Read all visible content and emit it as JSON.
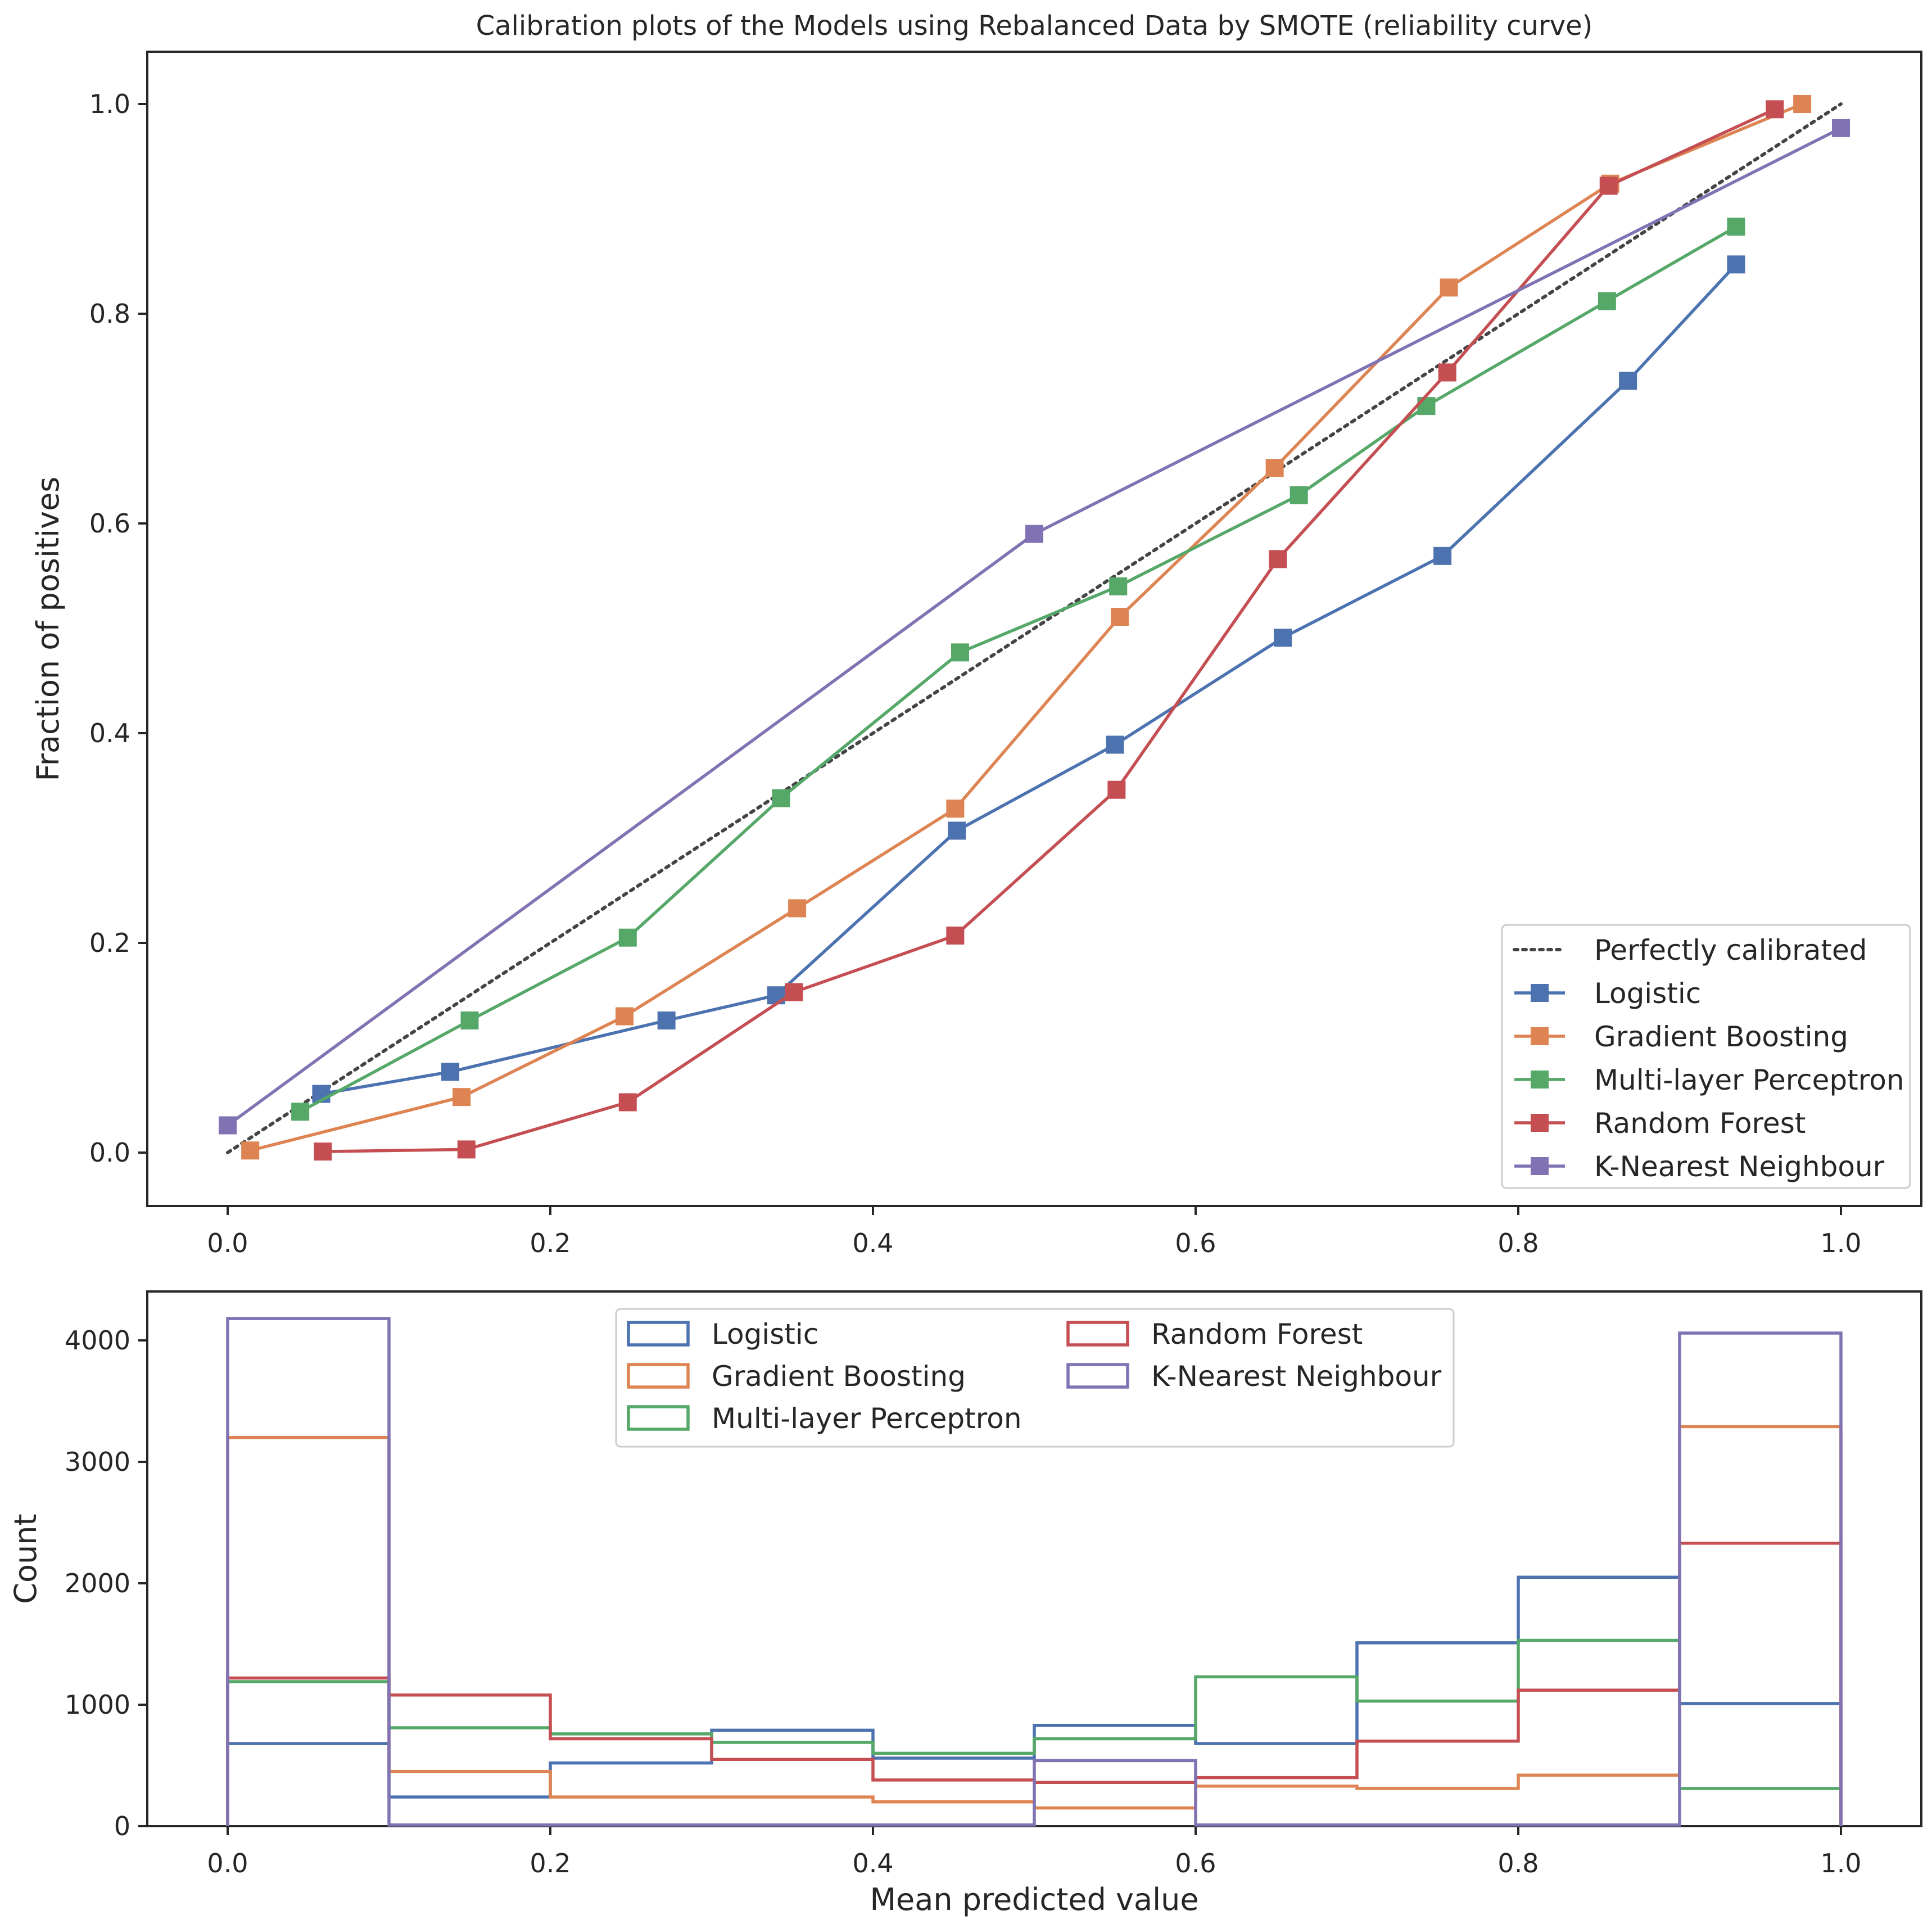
{
  "chart_data": [
    {
      "type": "line",
      "title": "Calibration plots of the Models using Rebalanced Data by SMOTE (reliability curve)",
      "xlabel": "",
      "ylabel": "Fraction of positives",
      "xlim": [
        -0.05,
        1.05
      ],
      "ylim": [
        -0.05,
        1.05
      ],
      "xticks": [
        0.0,
        0.2,
        0.4,
        0.6,
        0.8,
        1.0
      ],
      "xtick_labels": [
        "0.0",
        "0.2",
        "0.4",
        "0.6",
        "0.8",
        "1.0"
      ],
      "yticks": [
        0.0,
        0.2,
        0.4,
        0.6,
        0.8,
        1.0
      ],
      "ytick_labels": [
        "0.0",
        "0.2",
        "0.4",
        "0.6",
        "0.8",
        "1.0"
      ],
      "grid": false,
      "legend_position": "lower-right",
      "reference": {
        "name": "Perfectly calibrated",
        "x": [
          0,
          1
        ],
        "y": [
          0,
          1
        ],
        "color": "#444444",
        "style": "dotted"
      },
      "series": [
        {
          "name": "Logistic",
          "color": "#4C72B0",
          "x": [
            0.058,
            0.138,
            0.272,
            0.34,
            0.452,
            0.55,
            0.654,
            0.753,
            0.868,
            0.935
          ],
          "y": [
            0.056,
            0.077,
            0.126,
            0.15,
            0.307,
            0.389,
            0.491,
            0.569,
            0.736,
            0.847
          ]
        },
        {
          "name": "Gradient Boosting",
          "color": "#DD8452",
          "x": [
            0.014,
            0.145,
            0.246,
            0.353,
            0.451,
            0.553,
            0.649,
            0.757,
            0.857,
            0.976
          ],
          "y": [
            0.002,
            0.053,
            0.13,
            0.233,
            0.328,
            0.511,
            0.653,
            0.825,
            0.924,
            1.0
          ]
        },
        {
          "name": "Multi-layer Perceptron",
          "color": "#55A868",
          "x": [
            0.045,
            0.15,
            0.248,
            0.343,
            0.454,
            0.552,
            0.664,
            0.743,
            0.855,
            0.935
          ],
          "y": [
            0.039,
            0.126,
            0.205,
            0.338,
            0.477,
            0.54,
            0.627,
            0.712,
            0.812,
            0.883
          ]
        },
        {
          "name": "Random Forest",
          "color": "#C44E52",
          "x": [
            0.059,
            0.148,
            0.248,
            0.351,
            0.451,
            0.551,
            0.651,
            0.756,
            0.856,
            0.959
          ],
          "y": [
            0.001,
            0.003,
            0.048,
            0.153,
            0.207,
            0.346,
            0.566,
            0.744,
            0.922,
            0.995
          ]
        },
        {
          "name": "K-Nearest Neighbour",
          "color": "#8172B3",
          "x": [
            0.0,
            0.5,
            1.0
          ],
          "y": [
            0.026,
            0.59,
            0.977
          ]
        }
      ]
    },
    {
      "type": "histogram",
      "title": "",
      "xlabel": "Mean predicted value",
      "ylabel": "Count",
      "xlim": [
        -0.05,
        1.05
      ],
      "ylim": [
        0,
        4300
      ],
      "xticks": [
        0.0,
        0.2,
        0.4,
        0.6,
        0.8,
        1.0
      ],
      "xtick_labels": [
        "0.0",
        "0.2",
        "0.4",
        "0.6",
        "0.8",
        "1.0"
      ],
      "yticks": [
        0,
        1000,
        2000,
        3000,
        4000
      ],
      "ytick_labels": [
        "0",
        "1000",
        "2000",
        "3000",
        "4000"
      ],
      "legend_position": "upper-center",
      "bins": [
        0.0,
        0.1,
        0.2,
        0.3,
        0.4,
        0.5,
        0.6,
        0.7,
        0.8,
        0.9,
        1.0
      ],
      "series": [
        {
          "name": "Logistic",
          "color": "#4C72B0",
          "values": [
            680,
            240,
            520,
            790,
            560,
            830,
            680,
            1510,
            2050,
            1010
          ]
        },
        {
          "name": "Gradient Boosting",
          "color": "#DD8452",
          "values": [
            3200,
            450,
            240,
            240,
            200,
            150,
            330,
            310,
            420,
            3290
          ]
        },
        {
          "name": "Multi-layer Perceptron",
          "color": "#55A868",
          "values": [
            1190,
            810,
            760,
            690,
            600,
            720,
            1230,
            1030,
            1530,
            310
          ]
        },
        {
          "name": "Random Forest",
          "color": "#C44E52",
          "values": [
            1220,
            1080,
            720,
            550,
            380,
            360,
            400,
            700,
            1120,
            2330
          ]
        },
        {
          "name": "K-Nearest Neighbour",
          "color": "#8172B3",
          "values": [
            4180,
            10,
            10,
            10,
            10,
            540,
            10,
            10,
            10,
            4060
          ]
        }
      ]
    }
  ]
}
